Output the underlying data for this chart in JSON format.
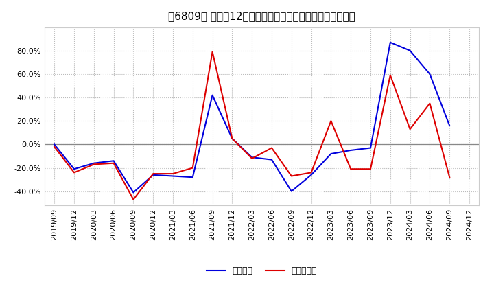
{
  "title": "［6809］ 利益の12か月移動合計の対前年同期増減率の推移",
  "x_labels": [
    "2019/09",
    "2019/12",
    "2020/03",
    "2020/06",
    "2020/09",
    "2020/12",
    "2021/03",
    "2021/06",
    "2021/09",
    "2021/12",
    "2022/03",
    "2022/06",
    "2022/09",
    "2022/12",
    "2023/03",
    "2023/06",
    "2023/09",
    "2023/12",
    "2024/03",
    "2024/06",
    "2024/09",
    "2024/12"
  ],
  "blue_values": [
    0.0,
    -21.0,
    -16.0,
    -14.0,
    -41.0,
    -26.0,
    -27.0,
    -28.0,
    42.0,
    5.0,
    -11.0,
    -13.0,
    -40.0,
    -26.0,
    -8.0,
    -5.0,
    -3.0,
    87.0,
    80.0,
    60.0,
    16.0,
    null
  ],
  "red_values": [
    -2.0,
    -24.0,
    -17.0,
    -16.0,
    -47.0,
    -25.0,
    -25.0,
    -20.0,
    79.0,
    5.0,
    -12.0,
    -3.0,
    -27.0,
    -24.0,
    20.0,
    -21.0,
    -21.0,
    59.0,
    13.0,
    35.0,
    -28.0,
    null
  ],
  "ylim": [
    -52,
    100
  ],
  "yticks": [
    -40.0,
    -20.0,
    0.0,
    20.0,
    40.0,
    60.0,
    80.0
  ],
  "blue_color": "#0000dd",
  "red_color": "#dd0000",
  "bg_color": "#ffffff",
  "plot_bg_color": "#ffffff",
  "grid_color": "#bbbbbb",
  "zero_line_color": "#888888",
  "legend_blue": "経常利益",
  "legend_red": "当期純利益",
  "title_fontsize": 11,
  "tick_fontsize": 8,
  "legend_fontsize": 9
}
